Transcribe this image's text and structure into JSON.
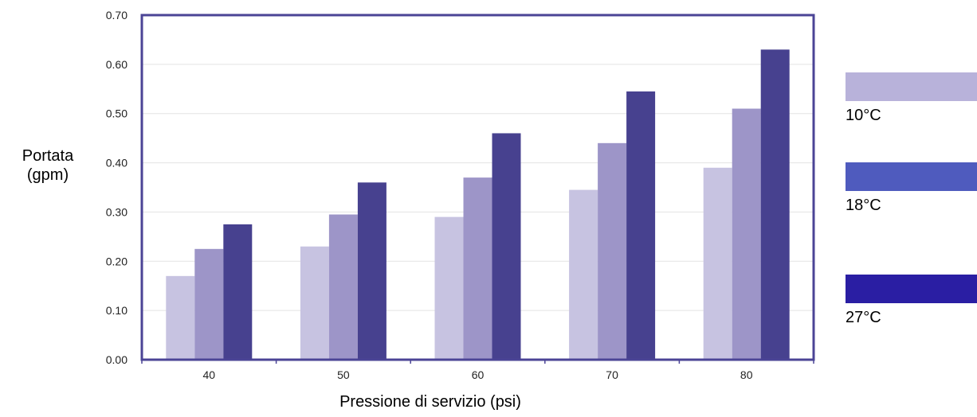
{
  "chart_data": {
    "type": "bar",
    "categories": [
      "40",
      "50",
      "60",
      "70",
      "80"
    ],
    "series": [
      {
        "name": "10°C",
        "values": [
          0.17,
          0.23,
          0.29,
          0.345,
          0.39
        ],
        "color": "#c7c3e1",
        "legend_color": "#b8b2da"
      },
      {
        "name": "18°C",
        "values": [
          0.225,
          0.295,
          0.37,
          0.44,
          0.51
        ],
        "color": "#9d95c8",
        "legend_color": "#4f5bbe"
      },
      {
        "name": "27°C",
        "values": [
          0.275,
          0.36,
          0.46,
          0.545,
          0.63
        ],
        "color": "#47418f",
        "legend_color": "#2a1ea3"
      }
    ],
    "yticks": [
      "0.00",
      "0.10",
      "0.20",
      "0.30",
      "0.40",
      "0.50",
      "0.60",
      "0.70"
    ],
    "ylim": [
      0,
      0.7
    ],
    "ylabel_lines": [
      "Portata",
      "(gpm)"
    ],
    "xlabel": "Pressione di servizio (psi)",
    "grid": true,
    "legend_position": "right",
    "frame_color": "#4b4496"
  }
}
